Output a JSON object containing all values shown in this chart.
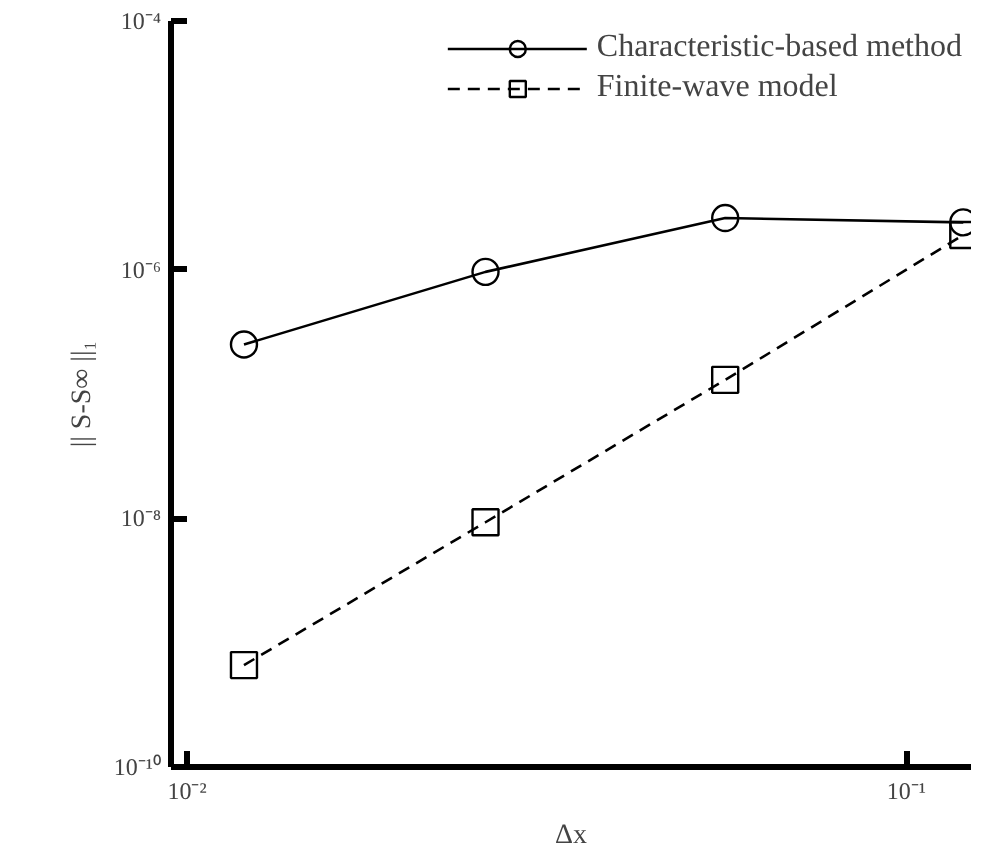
{
  "chart_data": {
    "type": "line",
    "xlabel": "Δx",
    "ylabel": "|| S-S∞ ||₁",
    "log": "xy",
    "grid": false,
    "legend": "top right",
    "xlim": [
      0.0095,
      0.123
    ],
    "ylim": [
      1e-10,
      0.0001
    ],
    "xticks": [
      {
        "value": 0.01,
        "label": "10⁻²"
      },
      {
        "value": 0.1,
        "label": "10⁻¹"
      }
    ],
    "yticks": [
      {
        "value": 1e-10,
        "label": "10⁻¹⁰"
      },
      {
        "value": 1e-08,
        "label": "10⁻⁸"
      },
      {
        "value": 1e-06,
        "label": "10⁻⁶"
      },
      {
        "value": 0.0001,
        "label": "10⁻⁴"
      }
    ],
    "series": [
      {
        "name": "Characteristic-based method",
        "color": "#000000",
        "marker": "circle",
        "line_style": "solid",
        "x": [
          0.012,
          0.026,
          0.056,
          0.12
        ],
        "values": [
          2.5e-07,
          9.6e-07,
          2.6e-06,
          2.4e-06
        ]
      },
      {
        "name": "Finite-wave model",
        "color": "#000000",
        "marker": "square",
        "line_style": "dashed",
        "x": [
          0.012,
          0.026,
          0.056,
          0.12
        ],
        "values": [
          6.6e-10,
          9.3e-09,
          1.3e-07,
          1.9e-06
        ]
      }
    ]
  }
}
